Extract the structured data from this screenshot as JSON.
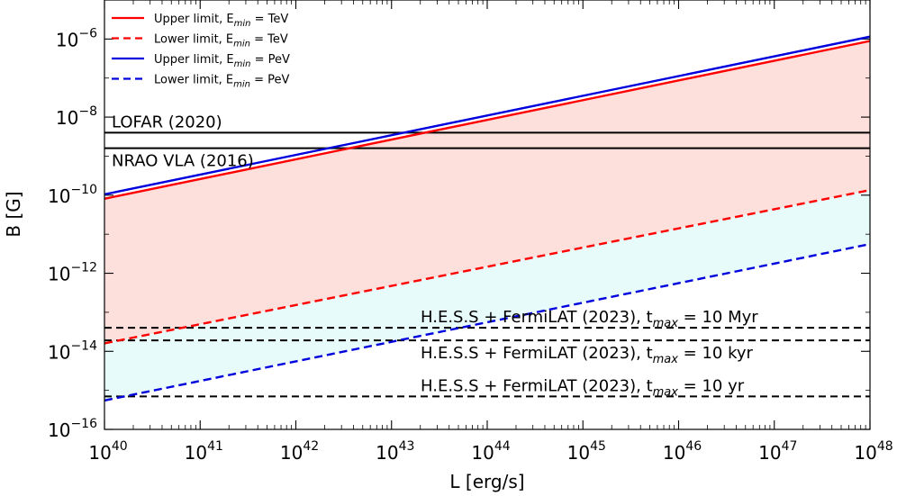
{
  "chart_data": {
    "type": "line",
    "xlabel": "L [erg/s]",
    "ylabel": "B [G]",
    "xscale": "log",
    "yscale": "log",
    "xlim": [
      1e+40,
      1e+48
    ],
    "ylim": [
      1e-16,
      1e-05
    ],
    "x_ticks": [
      {
        "base": "10",
        "exp": "40"
      },
      {
        "base": "10",
        "exp": "41"
      },
      {
        "base": "10",
        "exp": "42"
      },
      {
        "base": "10",
        "exp": "43"
      },
      {
        "base": "10",
        "exp": "44"
      },
      {
        "base": "10",
        "exp": "45"
      },
      {
        "base": "10",
        "exp": "46"
      },
      {
        "base": "10",
        "exp": "47"
      },
      {
        "base": "10",
        "exp": "48"
      }
    ],
    "y_ticks": [
      {
        "base": "10",
        "exp": "−6",
        "value": 1e-06
      },
      {
        "base": "10",
        "exp": "−8",
        "value": 1e-08
      },
      {
        "base": "10",
        "exp": "−10",
        "value": 1e-10
      },
      {
        "base": "10",
        "exp": "−12",
        "value": 1e-12
      },
      {
        "base": "10",
        "exp": "−14",
        "value": 1e-14
      },
      {
        "base": "10",
        "exp": "−16",
        "value": 1e-16
      }
    ],
    "grid": false,
    "legend_position": "top-left",
    "series": [
      {
        "name_main": "Upper limit, E",
        "name_sub": "min",
        "name_tail": " = TeV",
        "color": "#ff0000",
        "style": "solid",
        "x": [
          1e+40,
          1e+48
        ],
        "y": [
          8.1e-11,
          8.9e-07
        ]
      },
      {
        "name_main": "Lower limit, E",
        "name_sub": "min",
        "name_tail": " = TeV",
        "color": "#ff0000",
        "style": "dashed",
        "x": [
          1e+40,
          1e+48
        ],
        "y": [
          1.6e-14,
          1.35e-10
        ]
      },
      {
        "name_main": "Upper limit, E",
        "name_sub": "min",
        "name_tail": " = PeV",
        "color": "#0000dd",
        "style": "solid",
        "x": [
          1e+40,
          1e+48
        ],
        "y": [
          1.05e-10,
          1.15e-06
        ]
      },
      {
        "name_main": "Lower limit, E",
        "name_sub": "min",
        "name_tail": " = PeV",
        "color": "#0000dd",
        "style": "dashed",
        "x": [
          1e+40,
          1e+48
        ],
        "y": [
          5.5e-16,
          5.6e-12
        ]
      }
    ],
    "shaded_regions": [
      {
        "color": "#fddfdb",
        "between": [
          "Lower limit, E_min = TeV",
          "Upper limit, E_min = TeV"
        ]
      },
      {
        "color": "#e8fbfb",
        "between": [
          "Lower limit, E_min = PeV",
          "Lower limit, E_min = TeV"
        ]
      }
    ],
    "reference_lines": [
      {
        "label": "LOFAR (2020)",
        "y": 4e-09,
        "style": "solid",
        "label_pos": "above"
      },
      {
        "label": "NRAO VLA (2016)",
        "y": 1.6e-09,
        "style": "solid",
        "label_pos": "below"
      },
      {
        "label_main": "H.E.S.S + FermiLAT (2023), t",
        "label_sub": "max",
        "label_tail": " = 10 Myr",
        "y": 4e-14,
        "style": "dashed",
        "label_pos": "above"
      },
      {
        "label_main": "H.E.S.S + FermiLAT (2023), t",
        "label_sub": "max",
        "label_tail": " = 10 kyr",
        "y": 1.9e-14,
        "style": "dashed",
        "label_pos": "below"
      },
      {
        "label_main": "H.E.S.S + FermiLAT (2023), t",
        "label_sub": "max",
        "label_tail": " = 10 yr",
        "y": 7e-16,
        "style": "dashed",
        "label_pos": "above"
      }
    ]
  }
}
